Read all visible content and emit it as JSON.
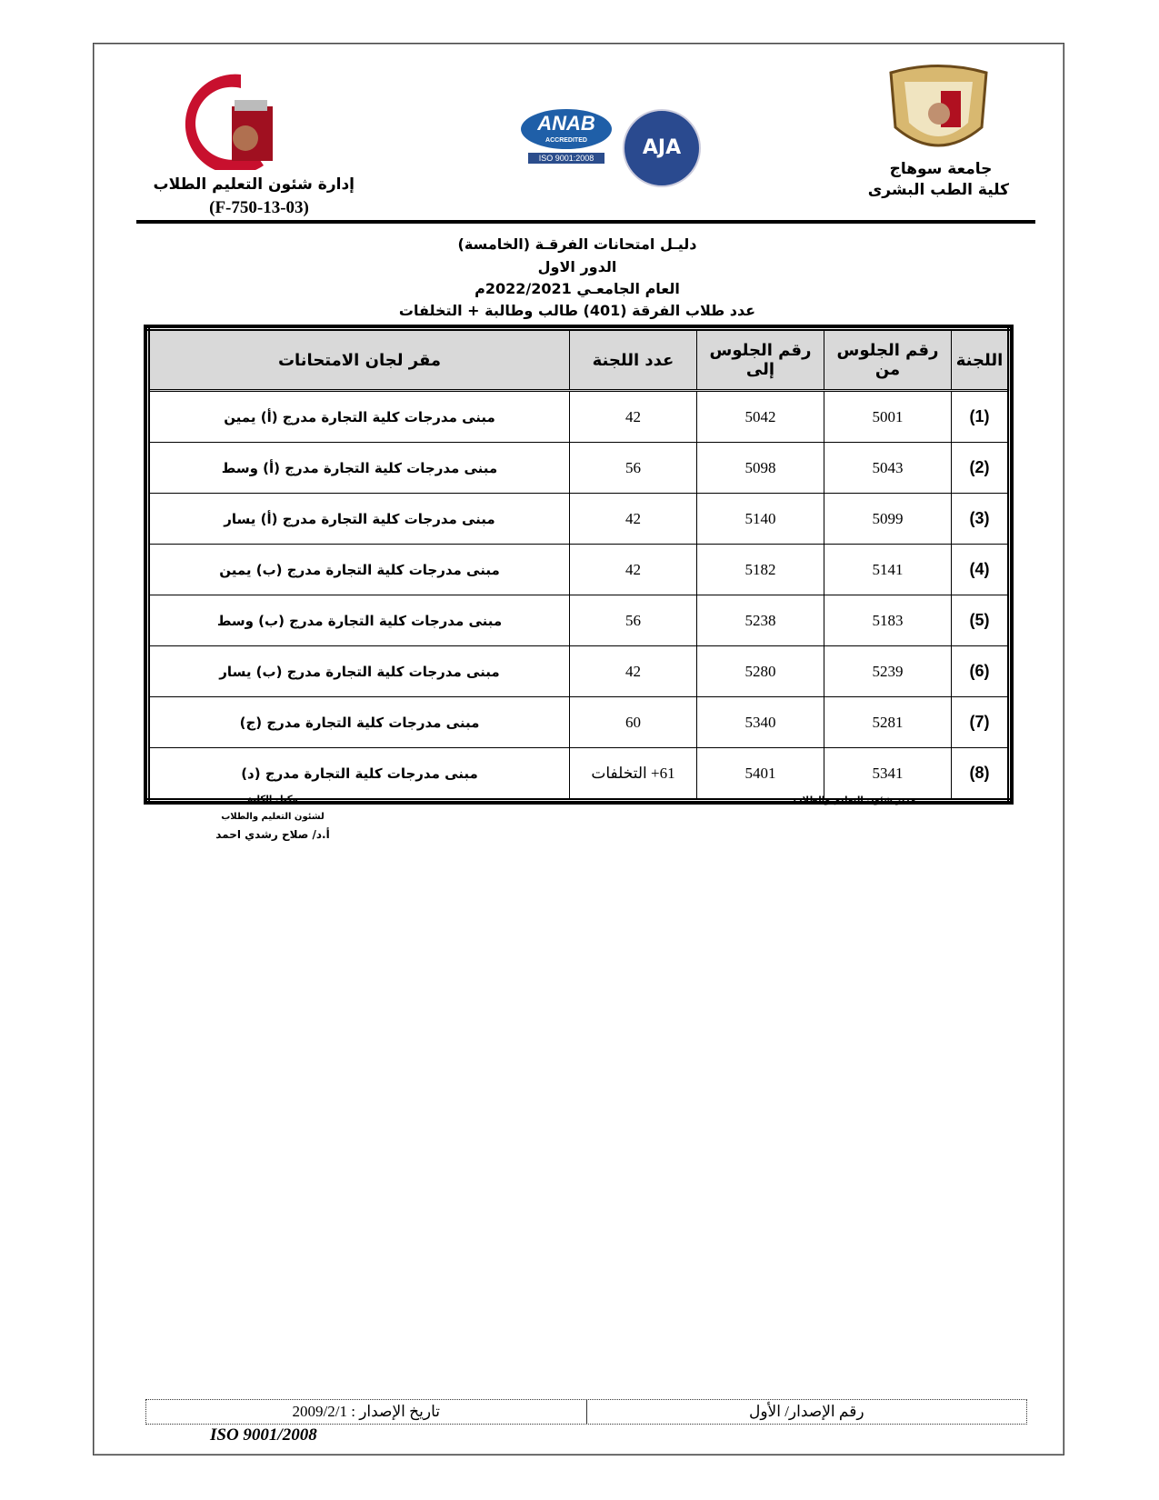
{
  "header": {
    "left_logo_text": "جامعة سوهاج كلية الطب",
    "left_dept": "إدارة شئون التعليم الطلاب",
    "left_code": "(F-750-13-03)",
    "center_logos": {
      "anab": "ANAB",
      "anab_sub": "ACCREDITED",
      "anab_iso": "ISO 9001:2008",
      "aja": "AJA"
    },
    "right_line1": "جامعة سوهاج",
    "right_line2": "كلية الطب البشرى"
  },
  "titles": [
    "دليـل امتحانات الفرقـة (الخامسة)",
    "الدور الاول",
    "العام الجامعـي 2022/2021م",
    "عدد طلاب الفرقة (401) طالب وطالبة + التخلفات"
  ],
  "table": {
    "headers": [
      "اللجنة",
      "رقم الجلوس من",
      "رقم الجلوس إلى",
      "عدد اللجنة",
      "مقر لجان الامتحانات"
    ],
    "rows": [
      {
        "no": "(1)",
        "from": "5001",
        "to": "5042",
        "count": "42",
        "venue": "مبنى مدرجات كلية التجارة مدرج (أ) يمين"
      },
      {
        "no": "(2)",
        "from": "5043",
        "to": "5098",
        "count": "56",
        "venue": "مبنى مدرجات كلية التجارة مدرج (أ) وسط"
      },
      {
        "no": "(3)",
        "from": "5099",
        "to": "5140",
        "count": "42",
        "venue": "مبنى مدرجات كلية التجارة مدرج (أ) يسار"
      },
      {
        "no": "(4)",
        "from": "5141",
        "to": "5182",
        "count": "42",
        "venue": "مبنى مدرجات كلية التجارة مدرج (ب) يمين"
      },
      {
        "no": "(5)",
        "from": "5183",
        "to": "5238",
        "count": "56",
        "venue": "مبنى مدرجات كلية التجارة مدرج (ب) وسط"
      },
      {
        "no": "(6)",
        "from": "5239",
        "to": "5280",
        "count": "42",
        "venue": "مبنى مدرجات كلية التجارة مدرج (ب) يسار"
      },
      {
        "no": "(7)",
        "from": "5281",
        "to": "5340",
        "count": "60",
        "venue": "مبنى مدرجات كلية التجارة مدرج (ج)"
      },
      {
        "no": "(8)",
        "from": "5341",
        "to": "5401",
        "count": "61+ التخلفات",
        "venue": "مبنى مدرجات كلية التجارة مدرج (د)"
      }
    ]
  },
  "signatures": {
    "right": "مدير شئون التعليم والطلاب",
    "left_line1": "وكيل الكلية",
    "left_line2": "لشئون التعليم والطلاب",
    "left_line3": "أ.د/ صلاح رشدي احمد"
  },
  "footer": {
    "issue_no": "رقم الإصدار/ الأول",
    "issue_date": "تاريخ الإصدار : 2009/2/1",
    "iso": "ISO 9001/2008"
  }
}
